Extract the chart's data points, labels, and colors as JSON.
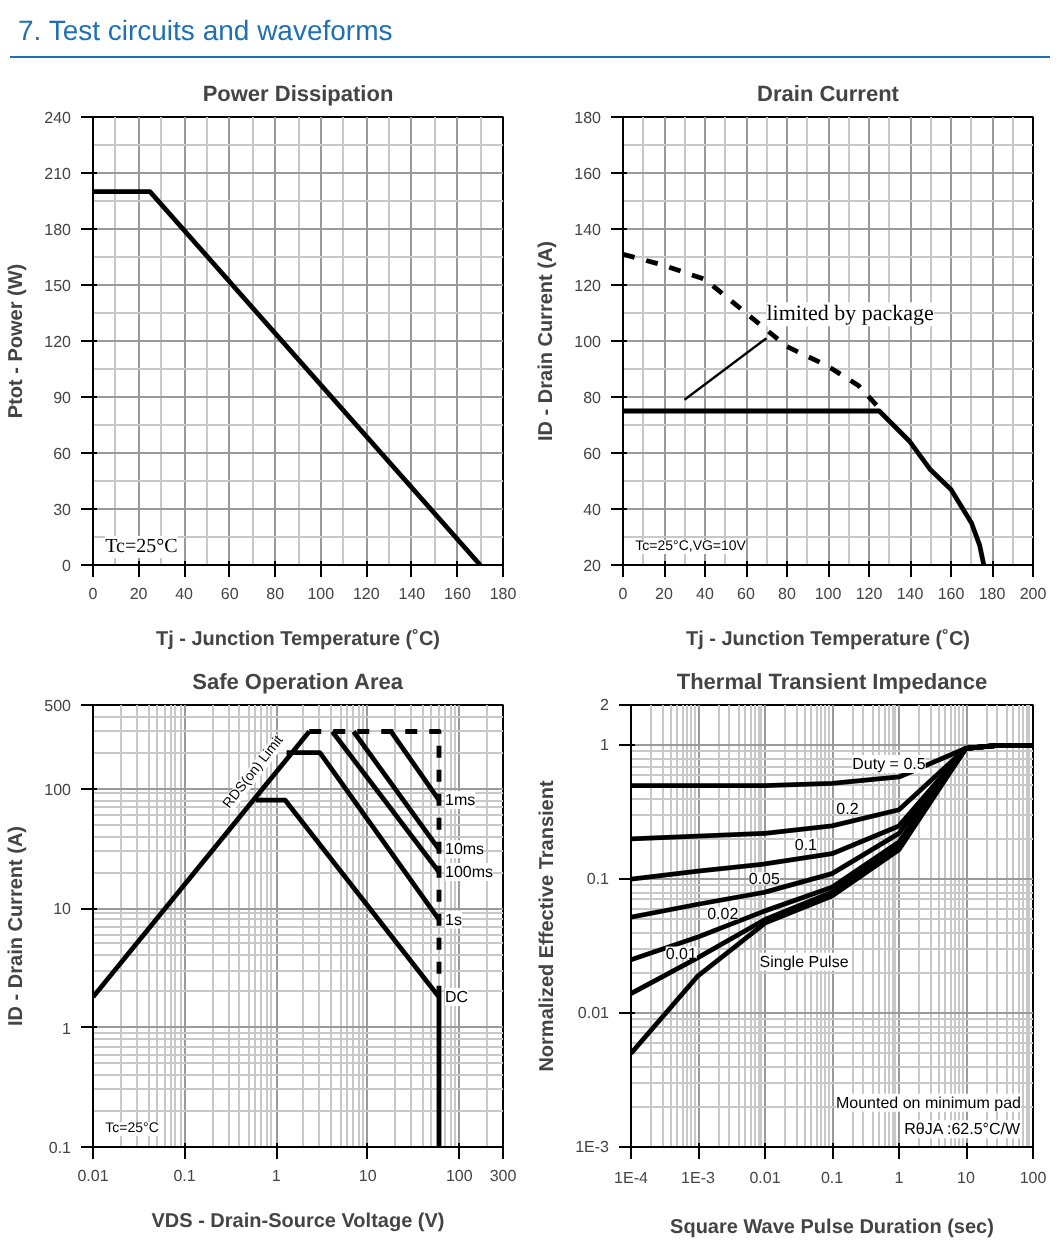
{
  "chart_data": [
    {
      "type": "other",
      "title": "7. Test circuits and waveforms"
    },
    {
      "type": "line",
      "title": "Power Dissipation",
      "xlabel": "Tj - Junction Temperature (˚C)",
      "ylabel": "Ptot - Power (W)",
      "xlim": [
        0,
        180
      ],
      "ylim": [
        0,
        240
      ],
      "xticks": [
        0,
        20,
        40,
        60,
        80,
        100,
        120,
        140,
        160,
        180
      ],
      "yticks": [
        0,
        30,
        60,
        90,
        120,
        150,
        180,
        210,
        240
      ],
      "grid": true,
      "annotations": [
        "Tc=25°C"
      ],
      "series": [
        {
          "color": "#000000",
          "x": [
            0,
            25,
            170
          ],
          "values": [
            200,
            200,
            0
          ]
        }
      ]
    },
    {
      "type": "line",
      "title": "Drain Current",
      "xlabel": "Tj - Junction Temperature (˚C)",
      "ylabel": "ID - Drain Current (A)",
      "xlim": [
        0,
        200
      ],
      "ylim": [
        20,
        180
      ],
      "xticks": [
        0,
        20,
        40,
        60,
        80,
        100,
        120,
        140,
        160,
        180,
        200
      ],
      "yticks": [
        20,
        40,
        60,
        80,
        100,
        120,
        140,
        160,
        180
      ],
      "grid": true,
      "annotations": [
        "Tc=25°C,VG=10V",
        {
          "text": "limited by package",
          "x": 70,
          "y": 101
        }
      ],
      "series": [
        {
          "color": "#000000",
          "line_style": "dashed",
          "x": [
            0,
            20,
            40,
            60,
            80,
            100,
            115,
            125
          ],
          "values": [
            131,
            127,
            122,
            110,
            98,
            91,
            84,
            76
          ]
        },
        {
          "color": "#000000",
          "x": [
            0,
            125,
            140,
            150,
            160,
            170,
            174,
            176
          ],
          "values": [
            75,
            75,
            64,
            54,
            47,
            35,
            27,
            20
          ]
        }
      ]
    },
    {
      "type": "line",
      "title": "Safe Operation Area",
      "xlabel": "VDS - Drain-Source Voltage (V)",
      "ylabel": "ID - Drain Current (A)",
      "log": "xy",
      "xlim": [
        0.01,
        300
      ],
      "ylim": [
        0.1,
        500
      ],
      "xticks": [
        0.01,
        0.1,
        1,
        10,
        100,
        300
      ],
      "yticks": [
        0.1,
        1,
        10,
        100,
        500
      ],
      "grid": true,
      "annotations": [
        "Tc=25°C",
        "RDS(on) Limit"
      ],
      "series": [
        {
          "color": "#000000",
          "x": [
            0.01,
            2.3
          ],
          "values": [
            1.8,
            300
          ]
        },
        {
          "color": "#000000",
          "line_style": "dashed",
          "x": [
            2.3,
            60,
            60
          ],
          "values": [
            300,
            300,
            1.8
          ]
        },
        {
          "name": "1ms",
          "color": "#000000",
          "x": [
            18,
            60
          ],
          "values": [
            300,
            80
          ]
        },
        {
          "name": "10ms",
          "color": "#000000",
          "x": [
            7,
            60
          ],
          "values": [
            300,
            31
          ]
        },
        {
          "name": "100ms",
          "color": "#000000",
          "x": [
            4.1,
            60
          ],
          "values": [
            300,
            20
          ]
        },
        {
          "name": "1s",
          "color": "#000000",
          "x": [
            1.3,
            3.0,
            60
          ],
          "values": [
            200,
            200,
            8
          ]
        },
        {
          "name": "DC",
          "color": "#000000",
          "x": [
            0.6,
            1.25,
            60,
            60
          ],
          "values": [
            80,
            80,
            1.8,
            0.1
          ]
        }
      ]
    },
    {
      "type": "line",
      "title": "Thermal Transient Impedance",
      "xlabel": "Square Wave Pulse Duration (sec)",
      "ylabel": "Normalized Effective Transient",
      "log": "xy",
      "xlim": [
        0.0001,
        100
      ],
      "ylim": [
        0.001,
        2
      ],
      "xticks": [
        {
          "value": 0.0001,
          "label": "1E-4"
        },
        {
          "value": 0.001,
          "label": "1E-3"
        },
        0.01,
        0.1,
        1,
        10,
        100
      ],
      "yticks": [
        {
          "value": 0.001,
          "label": "1E-3"
        },
        0.01,
        0.1,
        1,
        2
      ],
      "grid": true,
      "annotations": [
        "Mounted on minimum pad",
        "RθJA :62.5°C/W"
      ],
      "x": [
        0.0001,
        0.001,
        0.01,
        0.1,
        1,
        10,
        30,
        100
      ],
      "series": [
        {
          "name": "Duty = 0.5",
          "color": "#000000",
          "values": [
            0.5,
            0.5,
            0.5,
            0.52,
            0.58,
            0.95,
            1,
            1
          ]
        },
        {
          "name": "0.2",
          "color": "#000000",
          "values": [
            0.2,
            0.21,
            0.22,
            0.25,
            0.33,
            0.95,
            1,
            1
          ]
        },
        {
          "name": "0.1",
          "color": "#000000",
          "values": [
            0.1,
            0.115,
            0.13,
            0.155,
            0.25,
            0.95,
            1,
            1
          ]
        },
        {
          "name": "0.05",
          "color": "#000000",
          "values": [
            0.052,
            0.065,
            0.08,
            0.11,
            0.22,
            0.95,
            1,
            1
          ]
        },
        {
          "name": "0.02",
          "color": "#000000",
          "values": [
            0.025,
            0.037,
            0.058,
            0.087,
            0.19,
            0.95,
            1,
            1
          ]
        },
        {
          "name": "0.01",
          "color": "#000000",
          "values": [
            0.014,
            0.026,
            0.05,
            0.08,
            0.18,
            0.95,
            1,
            1
          ]
        },
        {
          "name": "Single Pulse",
          "color": "#000000",
          "values": [
            0.005,
            0.019,
            0.047,
            0.075,
            0.166,
            0.95,
            1,
            1
          ]
        }
      ]
    }
  ]
}
